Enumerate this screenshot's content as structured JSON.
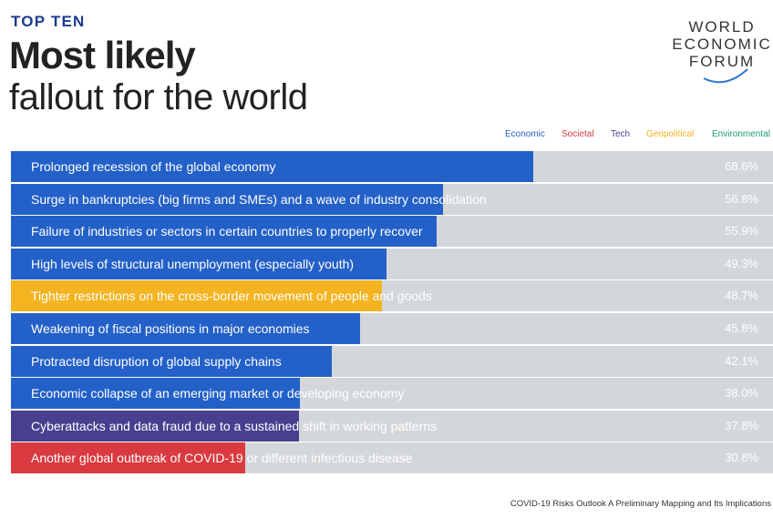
{
  "header": {
    "kicker": "TOP TEN",
    "title": "Most likely",
    "subtitle": "fallout for the world"
  },
  "logo": {
    "line1": "WORLD",
    "line2": "ECONOMIC",
    "line3": "FORUM"
  },
  "colors": {
    "Economic": "#2360c8",
    "Societal": "#d83a3f",
    "Tech": "#47408f",
    "Geopolitical": "#f4b320",
    "Environmental": "#1a9a78",
    "track": "#d4d7da"
  },
  "legend": [
    "Economic",
    "Societal",
    "Tech",
    "Geopolitical",
    "Environmental"
  ],
  "chart_data": {
    "type": "bar",
    "orientation": "horizontal",
    "title": "Most likely fallout for the world",
    "xlim": [
      0,
      100
    ],
    "unit": "%",
    "categories": [
      "Prolonged recession of the global economy",
      "Surge in bankruptcies (big firms and SMEs) and a wave of industry consolidation",
      "Failure of industries or sectors in certain countries to properly recover",
      "High levels of structural unemployment (especially youth)",
      "Tighter restrictions on the cross-border movement of people and goods",
      "Weakening of fiscal positions in major economies",
      "Protracted disruption of global supply chains",
      "Economic collapse of an emerging market or developing economy",
      "Cyberattacks and data fraud due to a sustained shift in working patterns",
      "Another global outbreak of COVID-19 or different infectious disease"
    ],
    "values": [
      68.6,
      56.8,
      55.9,
      49.3,
      48.7,
      45.8,
      42.1,
      38.0,
      37.8,
      30.8
    ],
    "value_labels": [
      "68.6%",
      "56.8%",
      "55.9%",
      "49.3%",
      "48.7%",
      "45.8%",
      "42.1%",
      "38.0%",
      "37.8%",
      "30.8%"
    ],
    "groups": [
      "Economic",
      "Economic",
      "Economic",
      "Economic",
      "Geopolitical",
      "Economic",
      "Economic",
      "Economic",
      "Tech",
      "Societal"
    ]
  },
  "source": "COVID-19 Risks Outlook A Preliminary Mapping and Its Implications"
}
